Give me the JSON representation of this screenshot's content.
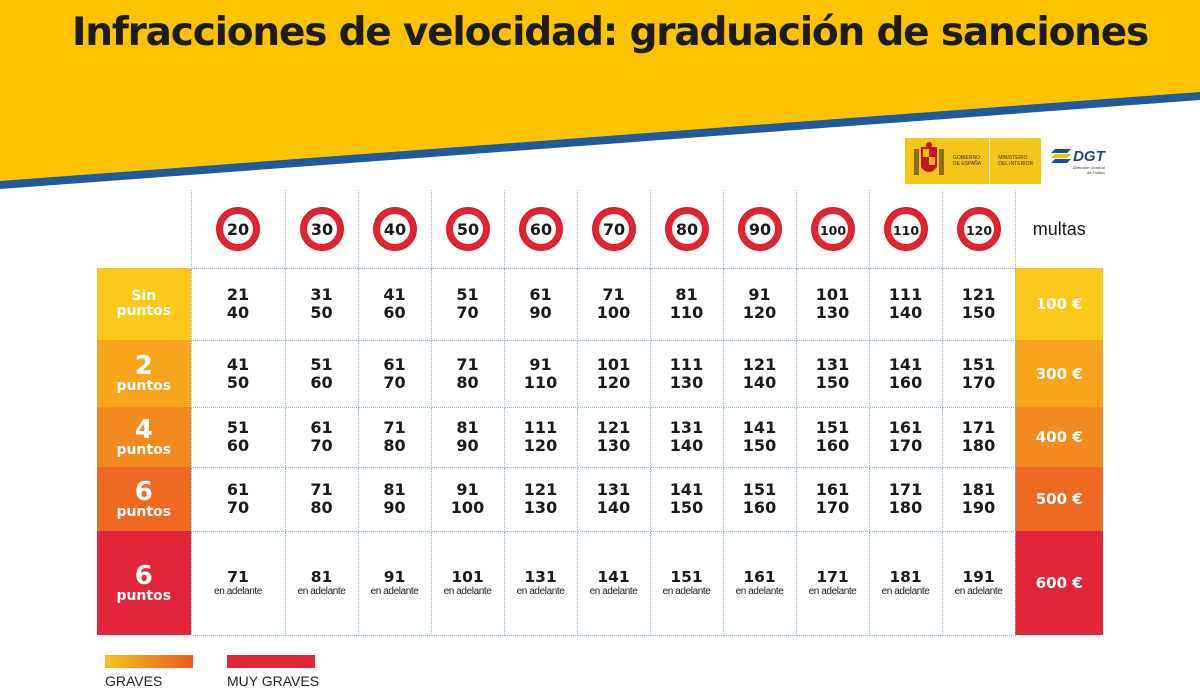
{
  "title": "Infracciones de velocidad: graduación de sanciones",
  "logos": {
    "gobierno": [
      "GOBIERNO",
      "DE ESPAÑA"
    ],
    "ministerio": [
      "MINISTERIO",
      "DEL INTERIOR"
    ],
    "dgt": "DGT",
    "dgt_sub": [
      "Dirección General",
      "de Tráfico"
    ]
  },
  "colors": {
    "banner_yellow": "#fcc400",
    "banner_blue": "#1e5a9e",
    "sign_red": "#d8202a",
    "graves_start": "#f6c320",
    "graves_end": "#ea5b1c",
    "muy_graves": "#e3253a"
  },
  "table": {
    "speed_limits": [
      "20",
      "30",
      "40",
      "50",
      "60",
      "70",
      "80",
      "90",
      "100",
      "110",
      "120"
    ],
    "multas_header": "multas",
    "rows": [
      {
        "label_big": "Sin",
        "label_small": "puntos",
        "fine": "100 €",
        "color": "#fcc81c",
        "cells": [
          [
            "21",
            "40"
          ],
          [
            "31",
            "50"
          ],
          [
            "41",
            "60"
          ],
          [
            "51",
            "70"
          ],
          [
            "61",
            "90"
          ],
          [
            "71",
            "100"
          ],
          [
            "81",
            "110"
          ],
          [
            "91",
            "120"
          ],
          [
            "101",
            "130"
          ],
          [
            "111",
            "140"
          ],
          [
            "121",
            "150"
          ]
        ]
      },
      {
        "label_big": "2",
        "label_small": "puntos",
        "fine": "300 €",
        "color": "#f7a51d",
        "cells": [
          [
            "41",
            "50"
          ],
          [
            "51",
            "60"
          ],
          [
            "61",
            "70"
          ],
          [
            "71",
            "80"
          ],
          [
            "91",
            "110"
          ],
          [
            "101",
            "120"
          ],
          [
            "111",
            "130"
          ],
          [
            "121",
            "140"
          ],
          [
            "131",
            "150"
          ],
          [
            "141",
            "160"
          ],
          [
            "151",
            "170"
          ]
        ]
      },
      {
        "label_big": "4",
        "label_small": "puntos",
        "fine": "400 €",
        "color": "#f38a20",
        "cells": [
          [
            "51",
            "60"
          ],
          [
            "61",
            "70"
          ],
          [
            "71",
            "80"
          ],
          [
            "81",
            "90"
          ],
          [
            "111",
            "120"
          ],
          [
            "121",
            "130"
          ],
          [
            "131",
            "140"
          ],
          [
            "141",
            "150"
          ],
          [
            "151",
            "160"
          ],
          [
            "161",
            "170"
          ],
          [
            "171",
            "180"
          ]
        ]
      },
      {
        "label_big": "6",
        "label_small": "puntos",
        "fine": "500 €",
        "color": "#ee6a22",
        "cells": [
          [
            "61",
            "70"
          ],
          [
            "71",
            "80"
          ],
          [
            "81",
            "90"
          ],
          [
            "91",
            "100"
          ],
          [
            "121",
            "130"
          ],
          [
            "131",
            "140"
          ],
          [
            "141",
            "150"
          ],
          [
            "151",
            "160"
          ],
          [
            "161",
            "170"
          ],
          [
            "171",
            "180"
          ],
          [
            "181",
            "190"
          ]
        ]
      },
      {
        "label_big": "6",
        "label_small": "puntos",
        "fine": "600 €",
        "color": "#e3253a",
        "cells": [
          [
            "71",
            "en adelante"
          ],
          [
            "81",
            "en adelante"
          ],
          [
            "91",
            "en adelante"
          ],
          [
            "101",
            "en adelante"
          ],
          [
            "131",
            "en adelante"
          ],
          [
            "141",
            "en adelante"
          ],
          [
            "151",
            "en adelante"
          ],
          [
            "161",
            "en adelante"
          ],
          [
            "171",
            "en adelante"
          ],
          [
            "181",
            "en adelante"
          ],
          [
            "191",
            "en adelante"
          ]
        ]
      }
    ]
  },
  "legend": [
    {
      "label": "GRAVES"
    },
    {
      "label": "MUY GRAVES"
    }
  ]
}
